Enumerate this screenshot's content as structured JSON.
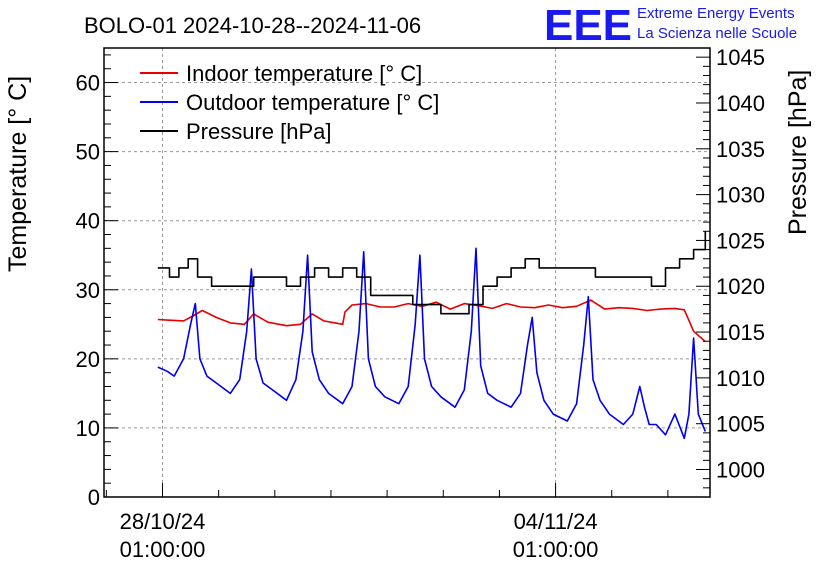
{
  "logo": {
    "mark": "EEE",
    "line1": "Extreme Energy Events",
    "line2": "La Scienza nelle Scuole",
    "color": "#1a1aee"
  },
  "chart_data": {
    "type": "line",
    "title": "BOLO-01 2024-10-28--2024-11-06",
    "ylabel": "Temperature [° C]",
    "y2label": "Pressure [hPa]",
    "xlabel": "",
    "x_range": [
      "2024-10-27 00:00",
      "2024-11-06 19:00"
    ],
    "ylim": [
      0,
      65
    ],
    "y2lim": [
      997,
      1046
    ],
    "y_ticks": [
      "0",
      "10",
      "20",
      "30",
      "40",
      "50",
      "60"
    ],
    "y2_ticks": [
      "1000",
      "1005",
      "1010",
      "1015",
      "1020",
      "1025",
      "1030",
      "1035",
      "1040",
      "1045"
    ],
    "x_ticks": [
      {
        "x": "2024-10-28 01:00",
        "line1": "28/10/24",
        "line2": "01:00:00"
      },
      {
        "x": "2024-11-04 01:00",
        "line1": "04/11/24",
        "line2": "01:00:00"
      }
    ],
    "grid": true,
    "legend_position": "top-left",
    "series": [
      {
        "name": "Indoor temperature [° C]",
        "color": "#e60000",
        "axis": "left",
        "x": [
          "2024-10-27 23:00",
          "2024-10-28 04:00",
          "2024-10-28 10:00",
          "2024-10-28 14:00",
          "2024-10-28 18:00",
          "2024-10-29 00:00",
          "2024-10-29 06:00",
          "2024-10-29 12:00",
          "2024-10-29 16:00",
          "2024-10-29 22:00",
          "2024-10-30 06:00",
          "2024-10-30 12:00",
          "2024-10-30 17:00",
          "2024-10-30 22:00",
          "2024-10-31 06:00",
          "2024-10-31 07:00",
          "2024-10-31 10:00",
          "2024-10-31 16:00",
          "2024-10-31 22:00",
          "2024-11-01 04:00",
          "2024-11-01 10:00",
          "2024-11-01 16:00",
          "2024-11-01 22:00",
          "2024-11-02 04:00",
          "2024-11-02 10:00",
          "2024-11-02 16:00",
          "2024-11-02 22:00",
          "2024-11-03 04:00",
          "2024-11-03 10:00",
          "2024-11-03 16:00",
          "2024-11-03 22:00",
          "2024-11-04 04:00",
          "2024-11-04 10:00",
          "2024-11-04 16:00",
          "2024-11-04 22:00",
          "2024-11-05 04:00",
          "2024-11-05 10:00",
          "2024-11-05 16:00",
          "2024-11-05 22:00",
          "2024-11-06 04:00",
          "2024-11-06 08:00",
          "2024-11-06 12:00",
          "2024-11-06 17:00"
        ],
        "y": [
          25.7,
          25.6,
          25.5,
          26.2,
          27.0,
          26.0,
          25.2,
          25.0,
          26.5,
          25.3,
          24.8,
          25.0,
          26.5,
          25.5,
          25.0,
          26.8,
          27.8,
          28.0,
          27.5,
          27.5,
          28.0,
          27.6,
          28.2,
          27.2,
          28.0,
          27.7,
          27.3,
          28.0,
          27.5,
          27.4,
          27.8,
          27.4,
          27.6,
          28.5,
          27.2,
          27.4,
          27.3,
          27.0,
          27.2,
          27.3,
          27.1,
          24.0,
          22.5
        ]
      },
      {
        "name": "Outdoor temperature [° C]",
        "color": "#0000ee",
        "axis": "left",
        "x": [
          "2024-10-27 23:00",
          "2024-10-28 03:00",
          "2024-10-28 06:00",
          "2024-10-28 10:00",
          "2024-10-28 13:00",
          "2024-10-28 15:00",
          "2024-10-28 17:00",
          "2024-10-28 20:00",
          "2024-10-29 00:00",
          "2024-10-29 06:00",
          "2024-10-29 10:00",
          "2024-10-29 13:00",
          "2024-10-29 15:00",
          "2024-10-29 17:00",
          "2024-10-29 20:00",
          "2024-10-30 00:00",
          "2024-10-30 06:00",
          "2024-10-30 10:00",
          "2024-10-30 13:00",
          "2024-10-30 15:00",
          "2024-10-30 17:00",
          "2024-10-30 20:00",
          "2024-10-31 00:00",
          "2024-10-31 06:00",
          "2024-10-31 10:00",
          "2024-10-31 13:00",
          "2024-10-31 15:00",
          "2024-10-31 17:00",
          "2024-10-31 20:00",
          "2024-11-01 00:00",
          "2024-11-01 06:00",
          "2024-11-01 10:00",
          "2024-11-01 13:00",
          "2024-11-01 15:00",
          "2024-11-01 17:00",
          "2024-11-01 20:00",
          "2024-11-02 00:00",
          "2024-11-02 06:00",
          "2024-11-02 10:00",
          "2024-11-02 13:00",
          "2024-11-02 15:00",
          "2024-11-02 17:00",
          "2024-11-02 20:00",
          "2024-11-03 00:00",
          "2024-11-03 06:00",
          "2024-11-03 10:00",
          "2024-11-03 13:00",
          "2024-11-03 15:00",
          "2024-11-03 17:00",
          "2024-11-03 20:00",
          "2024-11-04 00:00",
          "2024-11-04 06:00",
          "2024-11-04 10:00",
          "2024-11-04 13:00",
          "2024-11-04 15:00",
          "2024-11-04 17:00",
          "2024-11-04 20:00",
          "2024-11-05 00:00",
          "2024-11-05 06:00",
          "2024-11-05 10:00",
          "2024-11-05 13:00",
          "2024-11-05 15:00",
          "2024-11-05 17:00",
          "2024-11-05 20:00",
          "2024-11-06 00:00",
          "2024-11-06 04:00",
          "2024-11-06 08:00",
          "2024-11-06 10:00",
          "2024-11-06 12:00",
          "2024-11-06 14:00",
          "2024-11-06 17:00"
        ],
        "y": [
          18.8,
          18.2,
          17.5,
          20.0,
          25.0,
          28.0,
          20.0,
          17.5,
          16.5,
          15.0,
          17.0,
          24.0,
          33.0,
          20.0,
          16.5,
          15.5,
          14.0,
          17.0,
          24.0,
          35.0,
          21.0,
          17.0,
          15.0,
          13.5,
          16.0,
          24.0,
          35.5,
          20.0,
          16.0,
          14.5,
          13.5,
          16.0,
          25.0,
          35.0,
          20.0,
          16.0,
          14.5,
          13.0,
          15.5,
          24.0,
          36.0,
          19.0,
          15.0,
          14.0,
          13.0,
          15.0,
          22.0,
          26.0,
          18.0,
          14.0,
          12.0,
          11.0,
          13.5,
          22.0,
          29.0,
          17.0,
          14.0,
          12.0,
          10.5,
          12.0,
          16.0,
          13.0,
          10.5,
          10.5,
          9.0,
          12.0,
          8.5,
          12.0,
          23.0,
          12.0,
          9.5
        ]
      },
      {
        "name": "Pressure [hPa]",
        "color": "#000000",
        "axis": "right",
        "x": [
          "2024-10-27 23:00",
          "2024-10-28 04:00",
          "2024-10-28 08:00",
          "2024-10-28 12:00",
          "2024-10-28 16:00",
          "2024-10-28 22:00",
          "2024-10-29 06:00",
          "2024-10-29 12:00",
          "2024-10-29 16:00",
          "2024-10-29 20:00",
          "2024-10-30 00:00",
          "2024-10-30 06:00",
          "2024-10-30 12:00",
          "2024-10-30 18:00",
          "2024-10-31 00:00",
          "2024-10-31 06:00",
          "2024-10-31 12:00",
          "2024-10-31 18:00",
          "2024-11-01 00:00",
          "2024-11-01 06:00",
          "2024-11-01 12:00",
          "2024-11-01 18:00",
          "2024-11-02 00:00",
          "2024-11-02 06:00",
          "2024-11-02 12:00",
          "2024-11-02 18:00",
          "2024-11-03 00:00",
          "2024-11-03 06:00",
          "2024-11-03 12:00",
          "2024-11-03 18:00",
          "2024-11-04 00:00",
          "2024-11-04 06:00",
          "2024-11-04 12:00",
          "2024-11-04 18:00",
          "2024-11-05 00:00",
          "2024-11-05 06:00",
          "2024-11-05 12:00",
          "2024-11-05 18:00",
          "2024-11-06 00:00",
          "2024-11-06 06:00",
          "2024-11-06 12:00",
          "2024-11-06 17:00"
        ],
        "y": [
          1022,
          1021,
          1022,
          1023,
          1021,
          1020,
          1020,
          1020,
          1021,
          1021,
          1021,
          1020,
          1021,
          1022,
          1021,
          1022,
          1021,
          1019,
          1019,
          1019,
          1018,
          1018,
          1017,
          1017,
          1018,
          1020,
          1021,
          1022,
          1023,
          1022,
          1022,
          1022,
          1022,
          1021,
          1021,
          1021,
          1021,
          1020,
          1022,
          1023,
          1024,
          1026
        ]
      }
    ]
  }
}
